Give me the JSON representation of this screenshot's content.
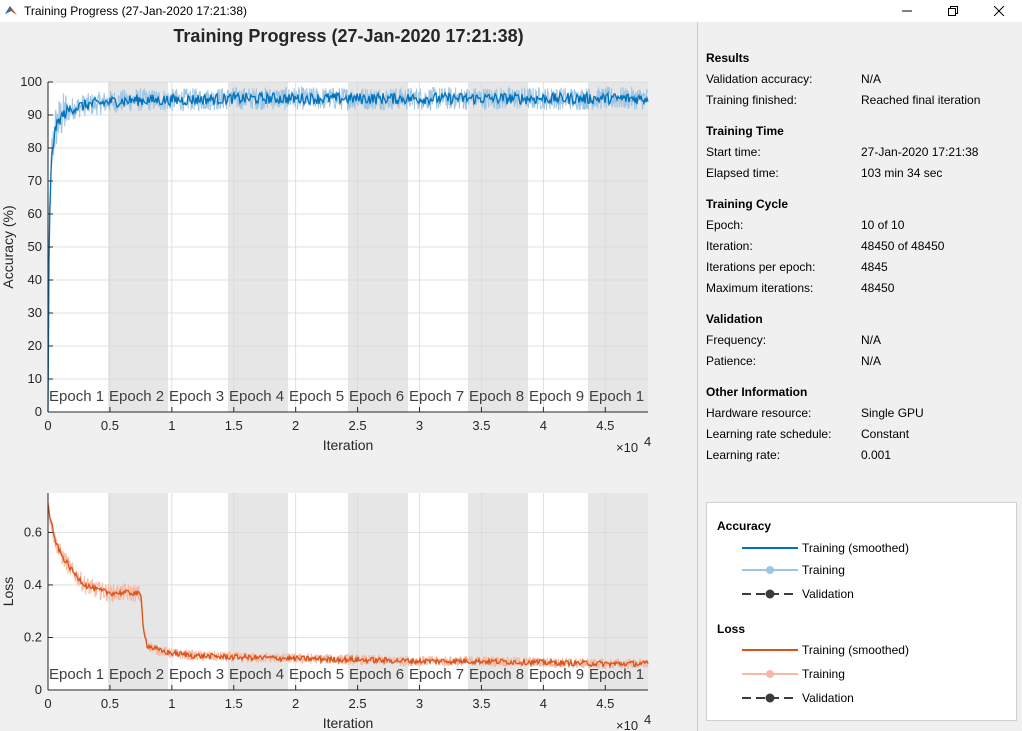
{
  "window": {
    "title": "Training Progress (27-Jan-2020 17:21:38)",
    "minimize_icon": "minimize-icon",
    "restore_icon": "restore-icon",
    "close_icon": "close-icon"
  },
  "figure_title": "Training Progress (27-Jan-2020 17:21:38)",
  "colors": {
    "accuracy": "#0072bd",
    "accuracy_light": "#9ec5e3",
    "loss": "#d95319",
    "loss_light": "#f5b9a4",
    "validation": "#3c3c3c",
    "epoch_shade": "#e6e6e6"
  },
  "chart_data": [
    {
      "type": "line",
      "ylabel": "Accuracy (%)",
      "xlabel": "Iteration",
      "x_exponent": "×10",
      "x_exponent_power": "4",
      "xlim": [
        0,
        48450
      ],
      "ylim": [
        0,
        100
      ],
      "x_ticks": [
        "0",
        "0.5",
        "1",
        "1.5",
        "2",
        "2.5",
        "3",
        "3.5",
        "4",
        "4.5"
      ],
      "y_ticks": [
        "0",
        "10",
        "20",
        "30",
        "40",
        "50",
        "60",
        "70",
        "80",
        "90",
        "100"
      ],
      "epoch_labels": [
        "Epoch 1",
        "Epoch 2",
        "Epoch 3",
        "Epoch 4",
        "Epoch 5",
        "Epoch 6",
        "Epoch 7",
        "Epoch 8",
        "Epoch 9",
        "Epoch 1"
      ],
      "iterations_per_epoch": 4845,
      "grid": true,
      "series": [
        {
          "name": "Training (smoothed)",
          "x": [
            0,
            100,
            300,
            600,
            1000,
            1500,
            2000,
            3000,
            4000,
            5000,
            7000,
            10000,
            15000,
            20000,
            25000,
            30000,
            35000,
            40000,
            45000,
            48450
          ],
          "values": [
            0,
            55,
            78,
            86,
            89,
            91,
            92,
            93,
            93.5,
            94,
            94.5,
            94.5,
            95,
            95,
            95,
            95,
            95,
            95,
            95,
            95
          ]
        }
      ]
    },
    {
      "type": "line",
      "ylabel": "Loss",
      "xlabel": "Iteration",
      "x_exponent": "×10",
      "x_exponent_power": "4",
      "xlim": [
        0,
        48450
      ],
      "ylim": [
        0,
        0.75
      ],
      "x_ticks": [
        "0",
        "0.5",
        "1",
        "1.5",
        "2",
        "2.5",
        "3",
        "3.5",
        "4",
        "4.5"
      ],
      "y_ticks": [
        "0",
        "0.2",
        "0.4",
        "0.6"
      ],
      "epoch_labels": [
        "Epoch 1",
        "Epoch 2",
        "Epoch 3",
        "Epoch 4",
        "Epoch 5",
        "Epoch 6",
        "Epoch 7",
        "Epoch 8",
        "Epoch 9",
        "Epoch 1"
      ],
      "iterations_per_epoch": 4845,
      "grid": true,
      "series": [
        {
          "name": "Training (smoothed)",
          "x": [
            0,
            500,
            1000,
            2000,
            3000,
            4000,
            5000,
            6000,
            7000,
            7500,
            7700,
            8000,
            9000,
            10000,
            12000,
            15000,
            20000,
            25000,
            30000,
            35000,
            40000,
            45000,
            48450
          ],
          "values": [
            0.7,
            0.58,
            0.52,
            0.45,
            0.4,
            0.38,
            0.37,
            0.37,
            0.37,
            0.36,
            0.24,
            0.17,
            0.15,
            0.14,
            0.13,
            0.125,
            0.12,
            0.115,
            0.11,
            0.11,
            0.105,
            0.1,
            0.1
          ]
        }
      ]
    }
  ],
  "info": {
    "results": {
      "heading": "Results",
      "rows": [
        {
          "key": "Validation accuracy:",
          "value": "N/A"
        },
        {
          "key": "Training finished:",
          "value": "Reached final iteration"
        }
      ]
    },
    "training_time": {
      "heading": "Training Time",
      "rows": [
        {
          "key": "Start time:",
          "value": "27-Jan-2020 17:21:38"
        },
        {
          "key": "Elapsed time:",
          "value": "103 min 34 sec"
        }
      ]
    },
    "training_cycle": {
      "heading": "Training Cycle",
      "rows": [
        {
          "key": "Epoch:",
          "value": "10 of 10"
        },
        {
          "key": "Iteration:",
          "value": "48450 of 48450"
        },
        {
          "key": "Iterations per epoch:",
          "value": "4845"
        },
        {
          "key": "Maximum iterations:",
          "value": "48450"
        }
      ]
    },
    "validation": {
      "heading": "Validation",
      "rows": [
        {
          "key": "Frequency:",
          "value": "N/A"
        },
        {
          "key": "Patience:",
          "value": "N/A"
        }
      ]
    },
    "other": {
      "heading": "Other Information",
      "rows": [
        {
          "key": "Hardware resource:",
          "value": "Single GPU"
        },
        {
          "key": "Learning rate schedule:",
          "value": "Constant"
        },
        {
          "key": "Learning rate:",
          "value": "0.001"
        }
      ]
    }
  },
  "legend": {
    "accuracy_heading": "Accuracy",
    "loss_heading": "Loss",
    "items": {
      "training_smoothed": "Training (smoothed)",
      "training": "Training",
      "validation": "Validation"
    }
  }
}
